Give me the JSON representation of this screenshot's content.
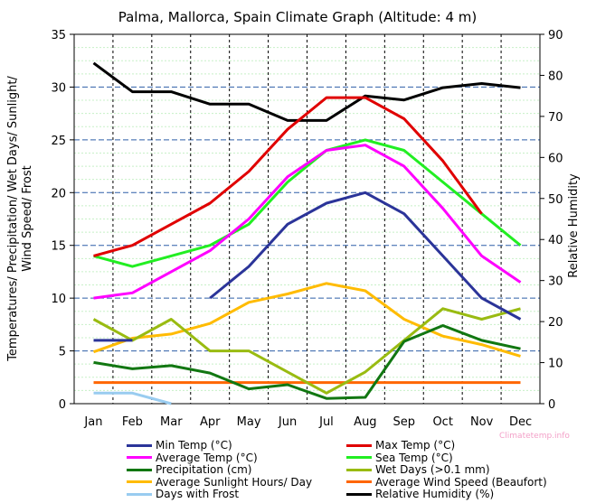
{
  "chart_data": {
    "type": "line",
    "title": "Palma, Mallorca, Spain Climate Graph (Altitude: 4 m)",
    "ylabel_left": "Temperatures/ Precipitation/ Wet Days/ Sunlight/ Wind Speed/ Frost",
    "ylabel_right": "Relative Humidity",
    "ylim_left": [
      0,
      35
    ],
    "ylim_right": [
      0,
      90
    ],
    "yticks_left": [
      "0",
      "5",
      "10",
      "15",
      "20",
      "25",
      "30",
      "35"
    ],
    "yticks_right": [
      "0",
      "10",
      "20",
      "30",
      "40",
      "50",
      "60",
      "70",
      "80",
      "90"
    ],
    "categories": [
      "Jan",
      "Feb",
      "Mar",
      "Apr",
      "May",
      "Jun",
      "Jul",
      "Aug",
      "Sep",
      "Oct",
      "Nov",
      "Dec"
    ],
    "series": [
      {
        "name": "Min Temp (°C)",
        "axis": "left",
        "color": "#2b3499",
        "values": [
          6,
          6,
          null,
          10,
          13,
          17,
          19,
          20,
          18,
          14,
          10,
          8
        ]
      },
      {
        "name": "Max Temp (°C)",
        "axis": "left",
        "color": "#e00000",
        "values": [
          14,
          15,
          17,
          19,
          22,
          26,
          29,
          29,
          27,
          23,
          18,
          null
        ]
      },
      {
        "name": "Average Temp (°C)",
        "axis": "left",
        "color": "#ff00ff",
        "values": [
          10,
          10.5,
          12.5,
          14.5,
          17.5,
          21.5,
          24,
          24.5,
          22.5,
          18.5,
          14,
          11.5
        ]
      },
      {
        "name": "Sea Temp (°C)",
        "axis": "left",
        "color": "#22ee22",
        "values": [
          14,
          13,
          14,
          15,
          17,
          21,
          24,
          25,
          24,
          21,
          18,
          15
        ]
      },
      {
        "name": "Precipitation (cm)",
        "axis": "left",
        "color": "#117711",
        "values": [
          3.9,
          3.3,
          3.6,
          2.9,
          1.4,
          1.8,
          0.5,
          0.6,
          5.9,
          7.4,
          6,
          5.2
        ]
      },
      {
        "name": "Wet Days (>0.1 mm)",
        "axis": "left",
        "color": "#99bb11",
        "values": [
          8,
          6,
          8,
          5,
          5,
          3,
          1,
          3,
          6,
          9,
          8,
          9
        ]
      },
      {
        "name": "Average Sunlight Hours/ Day",
        "axis": "left",
        "color": "#ffbb00",
        "values": [
          4.9,
          6.2,
          6.6,
          7.6,
          9.6,
          10.4,
          11.4,
          10.7,
          8.0,
          6.4,
          5.6,
          4.5
        ]
      },
      {
        "name": "Average Wind Speed (Beaufort)",
        "axis": "left",
        "color": "#ff6600",
        "values": [
          2,
          2,
          2,
          2,
          2,
          2,
          2,
          2,
          2,
          2,
          2,
          2
        ]
      },
      {
        "name": "Days with Frost",
        "axis": "left",
        "color": "#99ccf0",
        "values": [
          1,
          1,
          0,
          null,
          null,
          null,
          null,
          null,
          null,
          null,
          null,
          null
        ]
      },
      {
        "name": "Relative Humidity (%)",
        "axis": "right",
        "color": "#000000",
        "values": [
          83,
          76,
          76,
          73,
          73,
          69,
          69,
          75,
          74,
          77,
          78,
          77
        ]
      }
    ],
    "legend_position": "bottom",
    "grid": true
  },
  "watermark": "Climatetemp.info"
}
